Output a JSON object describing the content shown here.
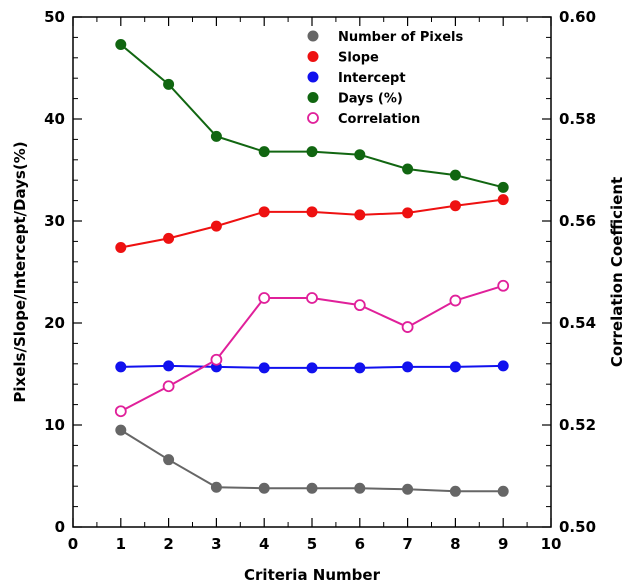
{
  "chart_data": {
    "type": "line",
    "x": [
      1,
      2,
      3,
      4,
      5,
      6,
      7,
      8,
      9
    ],
    "xlabel": "Criteria Number",
    "ylabel": "Pixels/Slope/Intercept/Days(%)",
    "y2label": "Correlation Coefficient",
    "xlim": [
      0,
      10
    ],
    "ylim": [
      0,
      50
    ],
    "y2lim": [
      0.5,
      0.6
    ],
    "x_ticks": [
      "0",
      "1",
      "2",
      "3",
      "4",
      "5",
      "6",
      "7",
      "8",
      "9",
      "10"
    ],
    "y_ticks": [
      "0",
      "10",
      "20",
      "30",
      "40",
      "50"
    ],
    "y2_ticks": [
      "0.50",
      "0.52",
      "0.54",
      "0.56",
      "0.58",
      "0.60"
    ],
    "grid": false,
    "legend_position": "top-center",
    "series": [
      {
        "name": "Number of Pixels",
        "axis": "left",
        "color": "#666666",
        "marker": "filled-circle",
        "values": [
          9.5,
          6.6,
          3.9,
          3.8,
          3.8,
          3.8,
          3.7,
          3.5,
          3.5
        ]
      },
      {
        "name": "Slope",
        "axis": "left",
        "color": "#ee1111",
        "marker": "filled-circle",
        "values": [
          27.4,
          28.3,
          29.5,
          30.9,
          30.9,
          30.6,
          30.8,
          31.5,
          32.1
        ]
      },
      {
        "name": "Intercept",
        "axis": "left",
        "color": "#1111ee",
        "marker": "filled-circle",
        "values": [
          15.7,
          15.8,
          15.7,
          15.6,
          15.6,
          15.6,
          15.7,
          15.7,
          15.8
        ]
      },
      {
        "name": "Days (%)",
        "axis": "left",
        "color": "#116611",
        "marker": "filled-circle",
        "values": [
          47.3,
          43.4,
          38.3,
          36.8,
          36.8,
          36.5,
          35.1,
          34.5,
          33.3
        ]
      },
      {
        "name": "Correlation",
        "axis": "right",
        "color": "#e0209a",
        "marker": "open-circle",
        "values": [
          0.5227,
          0.5276,
          0.5328,
          0.5449,
          0.5449,
          0.5435,
          0.5392,
          0.5444,
          0.5473
        ]
      }
    ]
  }
}
